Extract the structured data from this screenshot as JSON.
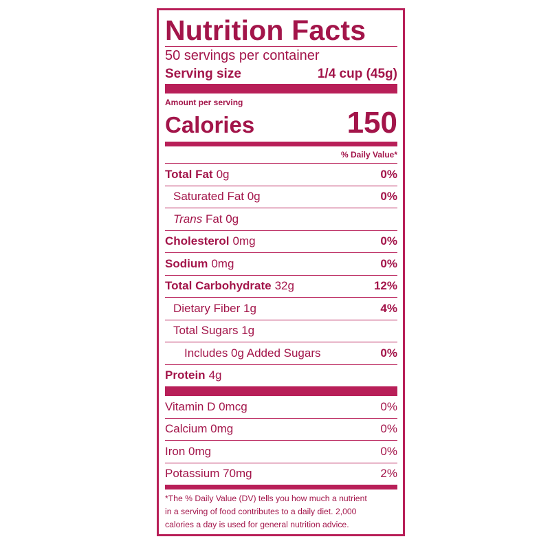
{
  "label": {
    "title": "Nutrition Facts",
    "servings": "50 servings per container",
    "serving_size_label": "Serving size",
    "serving_size": "1/4 cup (45g)",
    "amount_per_serving": "Amount per serving",
    "calories_label": "Calories",
    "calories": "150",
    "daily_value_header": "% Daily Value*",
    "nutrients": [
      {
        "label": "Total Fat",
        "amount": "0g",
        "dv": "0%",
        "bold": true,
        "indent": 0
      },
      {
        "label": "Saturated Fat 0g",
        "dv": "0%",
        "indent": 1
      },
      {
        "label_italic": "Trans",
        "label": "Fat 0g",
        "indent": 1
      },
      {
        "label": "Cholesterol",
        "amount": "0mg",
        "dv": "0%",
        "bold": true,
        "indent": 0
      },
      {
        "label": "Sodium",
        "amount": "0mg",
        "dv": "0%",
        "bold": true,
        "indent": 0
      },
      {
        "label": "Total Carbohydrate",
        "amount": "32g",
        "dv": "12%",
        "bold": true,
        "indent": 0
      },
      {
        "label": "Dietary Fiber 1g",
        "dv": "4%",
        "indent": 1
      },
      {
        "label": "Total Sugars 1g",
        "indent": 1
      },
      {
        "label": "Includes 0g Added Sugars",
        "dv": "0%",
        "indent": 2
      },
      {
        "label": "Protein",
        "amount": "4g",
        "bold": true,
        "indent": 0
      }
    ],
    "vitamins": [
      {
        "label": "Vitamin D 0mcg",
        "dv": "0%"
      },
      {
        "label": "Calcium 0mg",
        "dv": "0%"
      },
      {
        "label": "Iron 0mg",
        "dv": "0%"
      },
      {
        "label": "Potassium 70mg",
        "dv": "2%"
      }
    ],
    "footnote": [
      "*The % Daily Value (DV) tells you how much a nutrient",
      "in a serving of food contributes to a daily diet. 2,000",
      "calories a day is used for general nutrition advice."
    ]
  }
}
